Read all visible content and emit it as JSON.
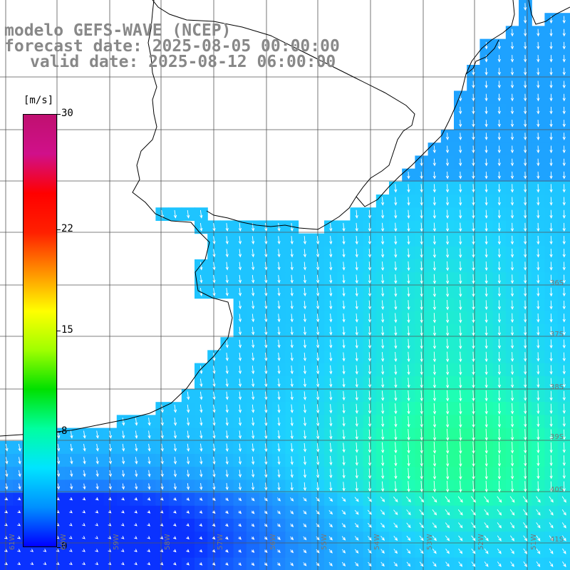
{
  "title": {
    "model": "modelo GEFS-WAVE (NCEP)",
    "forecast": "forecast date: 2025-08-05 00:00:00",
    "valid": "valid date: 2025-08-12 06:00:00"
  },
  "colorbar": {
    "unit": "[m/s]",
    "min": 0,
    "max": 30,
    "ticks": [
      {
        "label": "30",
        "value": 30
      },
      {
        "label": "22",
        "value": 22
      },
      {
        "label": "15",
        "value": 15
      },
      {
        "label": "8",
        "value": 8
      },
      {
        "label": "0",
        "value": 0
      }
    ],
    "colors": [
      "#0000ff",
      "#0090ff",
      "#00e4ff",
      "#00ffa0",
      "#00e000",
      "#a0ff00",
      "#ffff00",
      "#ff9000",
      "#ff2000",
      "#ff0000",
      "#d0108a",
      "#c01070"
    ]
  },
  "map": {
    "field": "wind speed",
    "lat_labels": [
      "36S",
      "37S",
      "38S",
      "39S",
      "40S",
      "41S"
    ],
    "lon_labels": [
      "61W",
      "60W",
      "59W",
      "58W",
      "57W",
      "56W",
      "55W",
      "54W",
      "53W",
      "52W",
      "51W"
    ],
    "ocean_palette": {
      "deep_blue": "#0a32ff",
      "blue": "#1e8cff",
      "cyan": "#1ed2ff",
      "aqua_green": "#1effb4",
      "green": "#28ff78"
    }
  }
}
